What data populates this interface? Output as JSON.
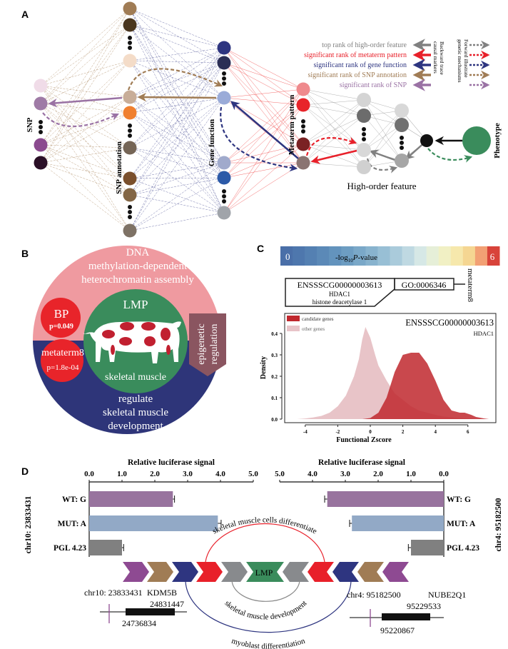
{
  "panels": {
    "a": "A",
    "b": "B",
    "c": "C",
    "d": "D"
  },
  "panel_a": {
    "layers": [
      {
        "label": "SNP",
        "nodes": [
          "#f0dce8",
          "#9f7ba6",
          "ellipsis",
          "#8b4a8f",
          "#2a0f26"
        ]
      },
      {
        "label": "SNP annotation",
        "nodes": [
          "#a07c55",
          "#4a361f",
          "ellipsis",
          "#f4dcc8",
          "#c8ad98",
          "#f08030",
          "ellipsis",
          "#756556",
          "#7a4f2c",
          "#836645",
          "ellipsis",
          "#7e7265"
        ]
      },
      {
        "label": "Gene function",
        "nodes": [
          "#2e3580",
          "#2b2e55",
          "ellipsis",
          "#9aabd8",
          "#a0aacc",
          "#2c5aa8",
          "ellipsis",
          "#a0a4aa"
        ]
      },
      {
        "label": "Metaterm pattern",
        "nodes": [
          "#ef8a8d",
          "#e8242a",
          "ellipsis",
          "#7a2224",
          "#8a7472"
        ]
      },
      {
        "label": "",
        "nodes": [
          "#d4d4d4",
          "#6c6c6c",
          "ellipsis",
          "#d8d8d8",
          "#d0d0d0"
        ]
      },
      {
        "label": "",
        "nodes": [
          "#d8d8d8",
          "#707070",
          "ellipsis",
          "#a6a6a6"
        ]
      }
    ],
    "high_order_label": "High-order feature",
    "phenotype_label": "Phenotype",
    "phenotype_color": "#3a8c5c",
    "legend": [
      {
        "text": "top rank of high-order feature",
        "color": "#808080"
      },
      {
        "text": "significant rank of metaterm pattern",
        "color": "#e8202a"
      },
      {
        "text": "significant rank of gene function",
        "color": "#2e3580"
      },
      {
        "text": "significant rank of SNP annotation",
        "color": "#a07c55"
      },
      {
        "text": "significant rank of SNP",
        "color": "#9a72a4"
      }
    ],
    "legend_backward": [
      "Backward trace",
      "causal markers"
    ],
    "legend_forward": [
      "Forward illustrate",
      "genetic mechanisms"
    ]
  },
  "panel_b": {
    "top_text": [
      "DNA",
      "methylation-dependent",
      "heterochromatin  assembly"
    ],
    "center_title": "LMP",
    "center_sub": "skeletal muscle",
    "bottom_text": [
      "regulate",
      "skeletal muscle",
      "development"
    ],
    "bp_label": "BP",
    "bp_p": "p=0.049",
    "metaterm_label": "metaterm8",
    "metaterm_p": "p=1.8e-04",
    "arrow_text": [
      "epigenetic",
      "regulation"
    ],
    "colors": {
      "top": "#ef9aa0",
      "bottom": "#2e3579",
      "center": "#3a8c5c",
      "badge": "#e8242a",
      "arrow": "#8a5560"
    }
  },
  "panel_c": {
    "colorbar": {
      "min_label": "0",
      "max_label": "6",
      "title_prefix": "-log",
      "title_sub": "10",
      "title_italic": "P",
      "title_suffix": "-value"
    },
    "gene_id": "ENSSSCG00000003613",
    "gene_symbol": "HDAC1",
    "gene_name": "histone deacetylase 1",
    "go_term": "GO:0006346",
    "metaterm": "metaterm8"
  },
  "panel_d": {
    "left_locus": "chr10: 23833431",
    "right_locus": "chr4: 95182500",
    "center": "LMP",
    "left_gene": "KDM5B",
    "left_end": "24831447",
    "left_start": "24736834",
    "right_gene": "NUBE2Q1",
    "right_end": "95229533",
    "right_start": "95220867",
    "arc_red": "skeletal   muscle   cells   differentiate",
    "arc_gray": "skeletal muscle development",
    "arc_navy": "myoblast    differentiation",
    "chevron_colors": [
      "#8e4a92",
      "#a07c55",
      "#2e3580",
      "#e8202a",
      "#888a8d"
    ]
  },
  "chart_data": [
    {
      "type": "area",
      "title": "ENSSSCG00000003613",
      "subtitle": "HDAC1",
      "xlabel": "Functional Zscore",
      "ylabel": "Density",
      "xlim": [
        -5,
        7.5
      ],
      "ylim": [
        0,
        0.45
      ],
      "xticks": [
        "-4",
        "-2",
        "0",
        "2",
        "4",
        "6"
      ],
      "yticks": [
        "0.0",
        "0.1",
        "0.2",
        "0.3",
        "0.4"
      ],
      "legend": "top-left",
      "series": [
        {
          "name": "other genes",
          "color": "#e8c4c8",
          "x": [
            -4.5,
            -4,
            -3.5,
            -3,
            -2.5,
            -2,
            -1.5,
            -1,
            -0.7,
            -0.5,
            -0.3,
            0,
            0.3,
            0.5,
            1,
            1.5,
            2,
            2.5,
            3,
            3.5,
            4,
            4.5,
            5,
            6,
            7
          ],
          "y": [
            0,
            0.003,
            0.008,
            0.015,
            0.03,
            0.06,
            0.11,
            0.2,
            0.28,
            0.37,
            0.43,
            0.38,
            0.3,
            0.25,
            0.18,
            0.12,
            0.09,
            0.06,
            0.04,
            0.03,
            0.02,
            0.012,
            0.008,
            0.003,
            0
          ]
        },
        {
          "name": "candidate genes",
          "color": "#c0282e",
          "x": [
            -0.5,
            0,
            0.5,
            1,
            1.5,
            2,
            2.5,
            3,
            3.5,
            4,
            4.5,
            5,
            5.5,
            5.8,
            6.2,
            6.5,
            7,
            7.3
          ],
          "y": [
            0,
            0.005,
            0.03,
            0.1,
            0.22,
            0.3,
            0.31,
            0.31,
            0.26,
            0.18,
            0.09,
            0.04,
            0.03,
            0.03,
            0.02,
            0.01,
            0.003,
            0
          ]
        }
      ]
    },
    {
      "type": "bar",
      "title": "Relative luciferase signal",
      "ylabel": "chr10: 23833431",
      "categories": [
        "WT: G",
        "MUT: A",
        "PGL 4.23"
      ],
      "values": [
        2.55,
        3.92,
        1.0
      ],
      "errors": [
        0.05,
        0.1,
        0.05
      ],
      "colors": [
        "#98739e",
        "#92a9c6",
        "#808080"
      ],
      "xticks": [
        "0.0",
        "1.0",
        "2.0",
        "3.0",
        "4.0",
        "5.0"
      ],
      "xlim": [
        0,
        5
      ]
    },
    {
      "type": "bar",
      "title": "Relative luciferase signal",
      "ylabel": "chr4: 95182500",
      "categories": [
        "WT: G",
        "MUT: A",
        "PGL 4.23"
      ],
      "values": [
        3.55,
        2.8,
        1.0
      ],
      "errors": [
        0.08,
        0.07,
        0.08
      ],
      "colors": [
        "#98739e",
        "#92a9c6",
        "#808080"
      ],
      "xticks": [
        "5.0",
        "4.0",
        "3.0",
        "2.0",
        "1.0",
        "0.0"
      ],
      "xlim": [
        5,
        0
      ]
    }
  ]
}
